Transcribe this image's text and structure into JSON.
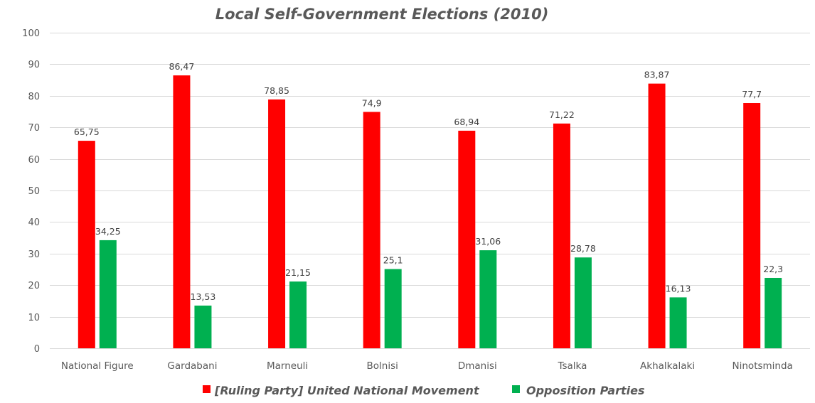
{
  "chart_data": {
    "type": "bar",
    "title": "Local Self-Government Elections (2010)",
    "xlabel": "",
    "ylabel": "",
    "ylim": [
      0,
      100
    ],
    "yticks": [
      0,
      10,
      20,
      30,
      40,
      50,
      60,
      70,
      80,
      90,
      100
    ],
    "grid": true,
    "legend_position": "bottom",
    "categories": [
      "National Figure",
      "Gardabani",
      "Marneuli",
      "Bolnisi",
      "Dmanisi",
      "Tsalka",
      "Akhalkalaki",
      "Ninotsminda"
    ],
    "series": [
      {
        "name": "[Ruling Party] United National Movement",
        "color": "#ff0000",
        "values": [
          65.75,
          86.47,
          78.85,
          74.9,
          68.94,
          71.22,
          83.87,
          77.7
        ],
        "labels": [
          "65,75",
          "86,47",
          "78,85",
          "74,9",
          "68,94",
          "71,22",
          "83,87",
          "77,7"
        ]
      },
      {
        "name": "Opposition Parties",
        "color": "#00b050",
        "values": [
          34.25,
          13.53,
          21.15,
          25.1,
          31.06,
          28.78,
          16.13,
          22.3
        ],
        "labels": [
          "34,25",
          "13,53",
          "21,15",
          "25,1",
          "31,06",
          "28,78",
          "16,13",
          "22,3"
        ]
      }
    ]
  }
}
